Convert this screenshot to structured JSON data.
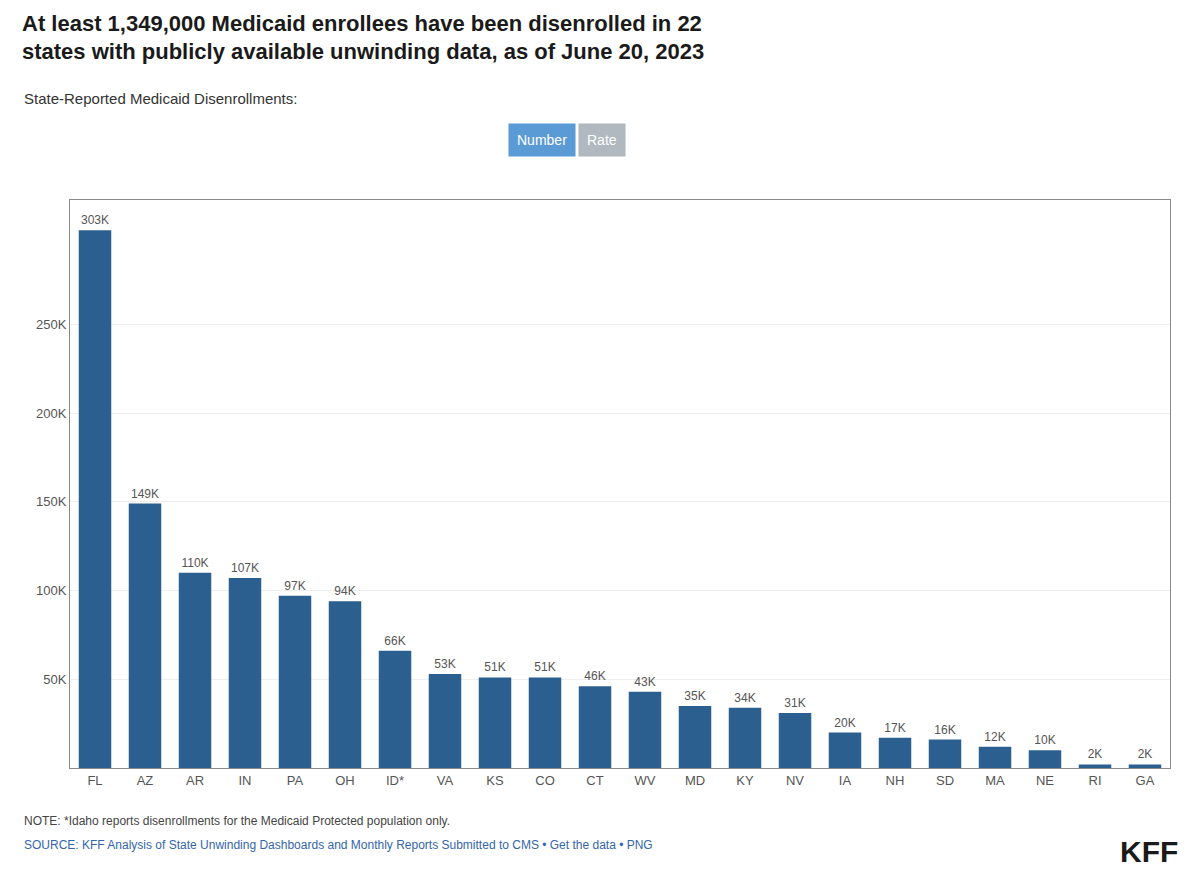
{
  "chart_data": {
    "type": "bar",
    "title": "At least 1,349,000 Medicaid enrollees have been disenrolled in 22\nstates with publicly available unwinding data, as of June 20, 2023",
    "subtitle": "State-Reported Medicaid Disenrollments:",
    "categories": [
      "FL",
      "AZ",
      "AR",
      "IN",
      "PA",
      "OH",
      "ID*",
      "VA",
      "KS",
      "CO",
      "CT",
      "WV",
      "MD",
      "KY",
      "NV",
      "IA",
      "NH",
      "SD",
      "MA",
      "NE",
      "RI",
      "GA"
    ],
    "values": [
      303000,
      149000,
      110000,
      107000,
      97000,
      94000,
      66000,
      53000,
      51000,
      51000,
      46000,
      43000,
      35000,
      34000,
      31000,
      20000,
      17000,
      16000,
      12000,
      10000,
      2000,
      2000
    ],
    "value_labels": [
      "303K",
      "149K",
      "110K",
      "107K",
      "97K",
      "94K",
      "66K",
      "53K",
      "51K",
      "51K",
      "46K",
      "43K",
      "35K",
      "34K",
      "31K",
      "20K",
      "17K",
      "16K",
      "12K",
      "10K",
      "2K",
      "2K"
    ],
    "data_labels": true,
    "color": "#2a5f8f",
    "ylim": [
      0,
      320000
    ],
    "yticks": [
      {
        "value": 50000,
        "label": "50K"
      },
      {
        "value": 100000,
        "label": "100K"
      },
      {
        "value": 150000,
        "label": "150K"
      },
      {
        "value": 200000,
        "label": "200K"
      },
      {
        "value": 250000,
        "label": "250K"
      }
    ],
    "grid": true,
    "annotations": [
      "Number",
      "Rate",
      "NOTE: *Idaho reports disenrollments for the Medicaid Protected population only.",
      "SOURCE: KFF Analysis of State Unwinding Dashboards and Monthly Reports Submitted to CMS • Get the data • PNG",
      "KFF"
    ]
  }
}
